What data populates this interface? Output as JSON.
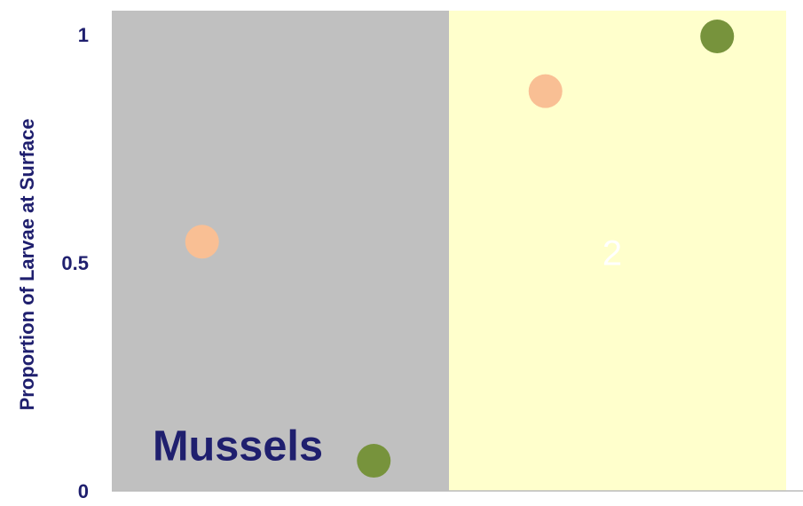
{
  "chart_data": {
    "type": "scatter",
    "ylabel": "Proportion of Larvae at Surface",
    "categories": [
      null,
      null,
      null,
      null
    ],
    "panels": [
      {
        "label": "Mussels",
        "color": "#c0c0c0"
      },
      {
        "label": "2",
        "color": "#ffffcc"
      }
    ],
    "series": [
      {
        "color": "#f9bf94",
        "values": [
          0.55,
          null,
          0.88,
          null
        ]
      },
      {
        "color": "#77933c",
        "values": [
          null,
          0.07,
          null,
          1
        ]
      }
    ],
    "ylim": [
      0,
      1
    ],
    "yticks": [
      0,
      0.5,
      1
    ],
    "grid": false
  }
}
